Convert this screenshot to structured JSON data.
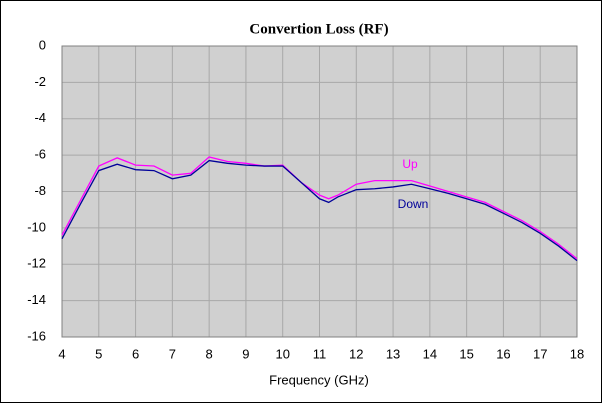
{
  "chart_data": {
    "type": "line",
    "title": "Convertion Loss (RF)",
    "x_label": "Frequency (GHz)",
    "x": [
      4,
      4.5,
      5,
      5.5,
      6,
      6.5,
      7,
      7.5,
      8,
      8.5,
      9,
      9.5,
      10,
      10.5,
      11,
      11.25,
      11.5,
      12,
      12.5,
      13,
      13.5,
      14,
      14.5,
      15,
      15.5,
      16,
      16.5,
      17,
      17.5,
      18
    ],
    "series": [
      {
        "name": "Up",
        "color": "#ff00ff",
        "values": [
          -10.4,
          -8.5,
          -6.6,
          -6.15,
          -6.55,
          -6.6,
          -7.1,
          -7.0,
          -6.1,
          -6.35,
          -6.45,
          -6.6,
          -6.55,
          -7.5,
          -8.2,
          -8.4,
          -8.2,
          -7.6,
          -7.4,
          -7.4,
          -7.4,
          -7.7,
          -8.0,
          -8.3,
          -8.6,
          -9.1,
          -9.6,
          -10.2,
          -10.9,
          -11.7
        ]
      },
      {
        "name": "Down",
        "color": "#000099",
        "values": [
          -10.6,
          -8.7,
          -6.85,
          -6.5,
          -6.8,
          -6.85,
          -7.3,
          -7.1,
          -6.3,
          -6.45,
          -6.55,
          -6.6,
          -6.6,
          -7.5,
          -8.4,
          -8.6,
          -8.3,
          -7.9,
          -7.85,
          -7.75,
          -7.6,
          -7.85,
          -8.1,
          -8.4,
          -8.7,
          -9.2,
          -9.7,
          -10.3,
          -11.0,
          -11.8
        ]
      }
    ],
    "xlim": [
      4,
      18
    ],
    "xticks": [
      4,
      5,
      6,
      7,
      8,
      9,
      10,
      11,
      12,
      13,
      14,
      15,
      16,
      17,
      18
    ],
    "ylim": [
      -16,
      0
    ],
    "yticks": [
      0,
      -2,
      -4,
      -6,
      -8,
      -10,
      -12,
      -14,
      -16
    ],
    "grid": true
  }
}
